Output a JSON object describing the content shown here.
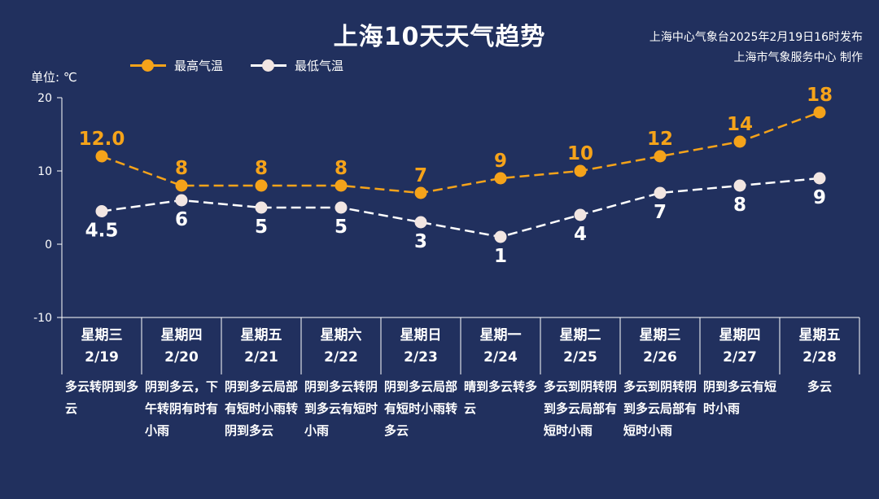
{
  "title": "上海10天天气趋势",
  "issuer": [
    "上海中心气象台2025年2月19日16时发布",
    "上海市气象服务中心 制作"
  ],
  "unit_label": "单位: ℃",
  "colors": {
    "background": "#21305e",
    "high": "#f5a31a",
    "low": "#ffffff",
    "low_fill": "#f2e6e2"
  },
  "chart_data": {
    "type": "line",
    "ylim": [
      -10,
      20
    ],
    "yticks": [
      20,
      10,
      0,
      -10
    ],
    "categories": [
      "2/19",
      "2/20",
      "2/21",
      "2/22",
      "2/23",
      "2/24",
      "2/25",
      "2/26",
      "2/27",
      "2/28"
    ],
    "series": [
      {
        "name": "最高气温",
        "values": [
          12,
          8,
          8,
          8,
          7,
          9,
          10,
          12,
          14,
          18
        ],
        "labels": [
          "12.0",
          "8",
          "8",
          "8",
          "7",
          "9",
          "10",
          "12",
          "14",
          "18"
        ]
      },
      {
        "name": "最低气温",
        "values": [
          4.5,
          6,
          5,
          5,
          3,
          1,
          4,
          7,
          8,
          9
        ],
        "labels": [
          "4.5",
          "6",
          "5",
          "5",
          "3",
          "1",
          "4",
          "7",
          "8",
          "9"
        ]
      }
    ],
    "legend": "top-left",
    "grid": false
  },
  "days": [
    {
      "weekday": "星期三",
      "date": "2/19",
      "weather": "多云转阴到多云"
    },
    {
      "weekday": "星期四",
      "date": "2/20",
      "weather": "阴到多云，下午转阴有时有小雨"
    },
    {
      "weekday": "星期五",
      "date": "2/21",
      "weather": "阴到多云局部有短时小雨转阴到多云"
    },
    {
      "weekday": "星期六",
      "date": "2/22",
      "weather": "阴到多云转阴到多云有短时小雨"
    },
    {
      "weekday": "星期日",
      "date": "2/23",
      "weather": "阴到多云局部有短时小雨转多云"
    },
    {
      "weekday": "星期一",
      "date": "2/24",
      "weather": "晴到多云转多云"
    },
    {
      "weekday": "星期二",
      "date": "2/25",
      "weather": "多云到阴转阴到多云局部有短时小雨"
    },
    {
      "weekday": "星期三",
      "date": "2/26",
      "weather": "多云到阴转阴到多云局部有短时小雨"
    },
    {
      "weekday": "星期四",
      "date": "2/27",
      "weather": "阴到多云有短时小雨"
    },
    {
      "weekday": "星期五",
      "date": "2/28",
      "weather": "多云"
    }
  ]
}
